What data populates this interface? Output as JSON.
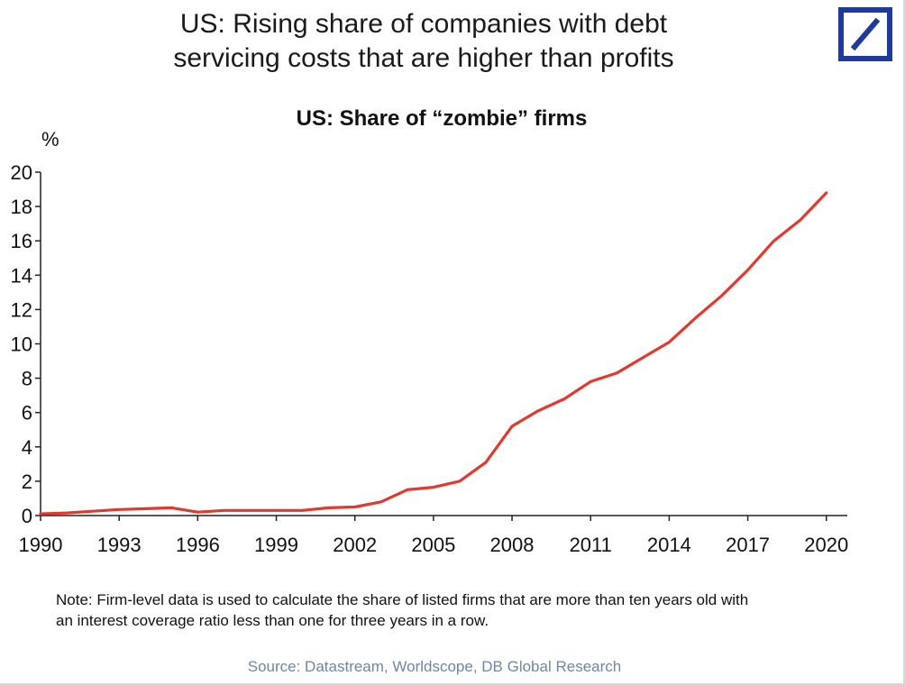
{
  "header": {
    "title_line1": "US: Rising share of companies with debt",
    "title_line2": "servicing costs that are higher than profits"
  },
  "logo": {
    "name": "deutsche-bank-logo-icon",
    "color": "#1f3a9a"
  },
  "chart_data": {
    "type": "line",
    "title": "US: Share of “zombie” firms",
    "ylabel": "%",
    "xlabel": "",
    "xlim": [
      1990,
      2020.8
    ],
    "ylim": [
      0,
      20
    ],
    "yticks": [
      0,
      2,
      4,
      6,
      8,
      10,
      12,
      14,
      16,
      18,
      20
    ],
    "xticks": [
      1990,
      1993,
      1996,
      1999,
      2002,
      2005,
      2008,
      2011,
      2014,
      2017,
      2020
    ],
    "grid": false,
    "legend": "none",
    "series": [
      {
        "color": "#e03a2f",
        "x": [
          1990,
          1991,
          1992,
          1993,
          1994,
          1995,
          1996,
          1997,
          1998,
          1999,
          2000,
          2001,
          2002,
          2003,
          2004,
          2005,
          2006,
          2007,
          2008,
          2009,
          2010,
          2011,
          2012,
          2013,
          2014,
          2015,
          2016,
          2017,
          2018,
          2019,
          2020
        ],
        "values": [
          0.1,
          0.15,
          0.25,
          0.35,
          0.4,
          0.45,
          0.2,
          0.3,
          0.3,
          0.3,
          0.3,
          0.45,
          0.5,
          0.8,
          1.5,
          1.65,
          2.0,
          3.1,
          5.2,
          6.1,
          6.8,
          7.8,
          8.3,
          9.2,
          10.1,
          11.5,
          12.8,
          14.3,
          16.0,
          17.2,
          18.8
        ]
      }
    ]
  },
  "note": {
    "line1": "Note: Firm-level data is used to calculate the share of listed firms that are more than ten years old with",
    "line2": "an interest coverage ratio less than one for three years in a row."
  },
  "source": "Source: Datastream, Worldscope, DB Global Research"
}
